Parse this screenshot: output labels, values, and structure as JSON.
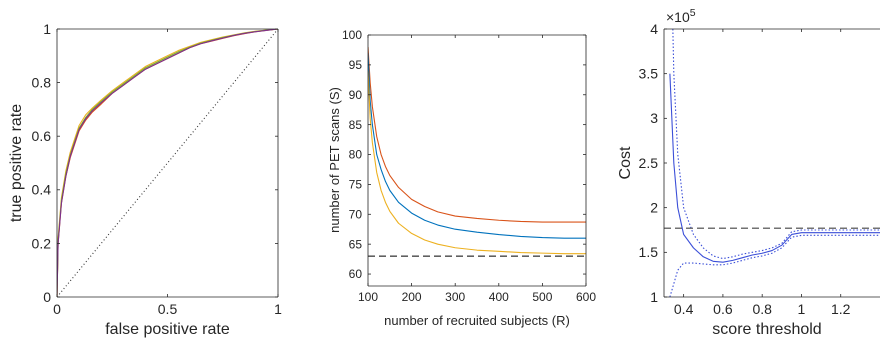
{
  "chart_data": [
    {
      "type": "line",
      "xlabel": "false positive rate",
      "ylabel": "true positive rate",
      "xlim": [
        0,
        1
      ],
      "ylim": [
        0,
        1
      ],
      "x_ticks": [
        "0",
        "0.5",
        "1"
      ],
      "x_tick_values": [
        0,
        0.5,
        1
      ],
      "y_ticks": [
        "0",
        "0.2",
        "0.4",
        "0.6",
        "0.8",
        "1"
      ],
      "y_tick_values": [
        0,
        0.2,
        0.4,
        0.6,
        0.8,
        1
      ],
      "grid": false,
      "series": [
        {
          "color": "#d95319",
          "x": [
            0,
            0.005,
            0.02,
            0.04,
            0.06,
            0.08,
            0.1,
            0.13,
            0.16,
            0.2,
            0.25,
            0.3,
            0.35,
            0.4,
            0.45,
            0.5,
            0.55,
            0.6,
            0.65,
            0.7,
            0.75,
            0.8,
            0.85,
            0.9,
            0.95,
            1
          ],
          "y": [
            0,
            0.2,
            0.35,
            0.45,
            0.52,
            0.57,
            0.62,
            0.66,
            0.69,
            0.72,
            0.76,
            0.79,
            0.82,
            0.85,
            0.87,
            0.89,
            0.91,
            0.93,
            0.945,
            0.955,
            0.965,
            0.975,
            0.983,
            0.99,
            0.995,
            1
          ]
        },
        {
          "color": "#edb120",
          "x": [
            0,
            0.005,
            0.02,
            0.04,
            0.06,
            0.08,
            0.1,
            0.13,
            0.16,
            0.2,
            0.25,
            0.3,
            0.35,
            0.4,
            0.45,
            0.5,
            0.55,
            0.6,
            0.65,
            0.7,
            0.75,
            0.8,
            0.85,
            0.9,
            0.95,
            1
          ],
          "y": [
            0,
            0.22,
            0.37,
            0.47,
            0.54,
            0.59,
            0.64,
            0.68,
            0.705,
            0.735,
            0.77,
            0.8,
            0.83,
            0.86,
            0.88,
            0.9,
            0.92,
            0.935,
            0.95,
            0.96,
            0.97,
            0.978,
            0.986,
            0.992,
            0.996,
            1
          ]
        },
        {
          "color": "#77ac30",
          "x": [
            0,
            0.005,
            0.02,
            0.04,
            0.06,
            0.08,
            0.1,
            0.13,
            0.16,
            0.2,
            0.25,
            0.3,
            0.35,
            0.4,
            0.45,
            0.5,
            0.55,
            0.6,
            0.65,
            0.7,
            0.75,
            0.8,
            0.85,
            0.9,
            0.95,
            1
          ],
          "y": [
            0,
            0.21,
            0.36,
            0.46,
            0.53,
            0.58,
            0.63,
            0.67,
            0.7,
            0.73,
            0.765,
            0.795,
            0.825,
            0.855,
            0.875,
            0.895,
            0.915,
            0.932,
            0.947,
            0.958,
            0.968,
            0.977,
            0.985,
            0.991,
            0.996,
            1
          ]
        },
        {
          "color": "#7e2f8e",
          "x": [
            0,
            0.005,
            0.02,
            0.04,
            0.06,
            0.08,
            0.1,
            0.13,
            0.16,
            0.2,
            0.25,
            0.3,
            0.35,
            0.4,
            0.45,
            0.5,
            0.55,
            0.6,
            0.65,
            0.7,
            0.75,
            0.8,
            0.85,
            0.9,
            0.95,
            1
          ],
          "y": [
            0,
            0.2,
            0.35,
            0.45,
            0.525,
            0.575,
            0.625,
            0.665,
            0.695,
            0.725,
            0.76,
            0.79,
            0.82,
            0.85,
            0.87,
            0.89,
            0.91,
            0.93,
            0.945,
            0.956,
            0.966,
            0.976,
            0.984,
            0.99,
            0.995,
            1
          ]
        },
        {
          "color": "#333333",
          "dash": "1,2.5",
          "x": [
            0,
            1
          ],
          "y": [
            0,
            1
          ]
        }
      ]
    },
    {
      "type": "line",
      "xlabel": "number of recruited subjects (R)",
      "ylabel": "number of PET scans (S)",
      "xlim": [
        100,
        600
      ],
      "ylim": [
        58,
        100
      ],
      "x_ticks": [
        "100",
        "200",
        "300",
        "400",
        "500",
        "600"
      ],
      "x_tick_values": [
        100,
        200,
        300,
        400,
        500,
        600
      ],
      "y_ticks": [
        "60",
        "65",
        "70",
        "75",
        "80",
        "85",
        "90",
        "95",
        "100"
      ],
      "y_tick_values": [
        60,
        65,
        70,
        75,
        80,
        85,
        90,
        95,
        100
      ],
      "grid": false,
      "series": [
        {
          "color": "#d95319",
          "x": [
            100,
            105,
            110,
            120,
            130,
            140,
            150,
            170,
            200,
            230,
            260,
            300,
            350,
            400,
            450,
            500,
            550,
            600
          ],
          "y": [
            98,
            92,
            88,
            83,
            80,
            78,
            76.5,
            74.5,
            72.5,
            71.3,
            70.4,
            69.7,
            69.3,
            69,
            68.8,
            68.7,
            68.7,
            68.7
          ]
        },
        {
          "color": "#0072bd",
          "x": [
            100,
            105,
            110,
            120,
            130,
            140,
            150,
            170,
            200,
            230,
            260,
            300,
            350,
            400,
            450,
            500,
            550,
            600
          ],
          "y": [
            97,
            89,
            85,
            80,
            77.5,
            75.5,
            74,
            72,
            70.2,
            69,
            68.2,
            67.5,
            67,
            66.6,
            66.3,
            66.1,
            66,
            66
          ]
        },
        {
          "color": "#edb120",
          "x": [
            100,
            105,
            110,
            120,
            130,
            140,
            150,
            170,
            200,
            230,
            260,
            300,
            350,
            400,
            450,
            500,
            550,
            600
          ],
          "y": [
            94,
            86,
            82,
            77,
            74,
            72,
            70.5,
            68.5,
            66.8,
            65.7,
            65,
            64.4,
            64,
            63.8,
            63.6,
            63.5,
            63.4,
            63.4
          ]
        },
        {
          "color": "#000000",
          "dash": "7,4",
          "x": [
            100,
            600
          ],
          "y": [
            63,
            63
          ]
        }
      ]
    },
    {
      "type": "line",
      "xlabel": "score threshold",
      "ylabel": "Cost",
      "axis_multiplier": "×10",
      "axis_multiplier_exp": "5",
      "xlim": [
        0.3,
        1.4
      ],
      "ylim": [
        1,
        4
      ],
      "x_ticks": [
        "0.4",
        "0.6",
        "0.8",
        "1",
        "1.2"
      ],
      "x_tick_values": [
        0.4,
        0.6,
        0.8,
        1,
        1.2
      ],
      "y_ticks": [
        "1",
        "1.5",
        "2",
        "2.5",
        "3",
        "3.5",
        "4"
      ],
      "y_tick_values": [
        1,
        1.5,
        2,
        2.5,
        3,
        3.5,
        4
      ],
      "grid": false,
      "series": [
        {
          "color": "#3b4fd8",
          "x": [
            0.33,
            0.34,
            0.35,
            0.37,
            0.4,
            0.45,
            0.5,
            0.55,
            0.6,
            0.65,
            0.7,
            0.75,
            0.8,
            0.85,
            0.9,
            0.95,
            1,
            1.05,
            1.1,
            1.15,
            1.2,
            1.3,
            1.4
          ],
          "y": [
            3.5,
            3.0,
            2.5,
            2.0,
            1.7,
            1.55,
            1.45,
            1.4,
            1.39,
            1.41,
            1.44,
            1.47,
            1.49,
            1.52,
            1.58,
            1.7,
            1.72,
            1.72,
            1.72,
            1.72,
            1.72,
            1.72,
            1.72
          ]
        },
        {
          "color": "#3b4fd8",
          "dash": "1.5,2",
          "x": [
            0.345,
            0.35,
            0.37,
            0.4,
            0.45,
            0.5,
            0.55,
            0.6,
            0.65,
            0.7,
            0.75,
            0.8,
            0.85,
            0.9,
            0.95,
            1,
            1.1,
            1.2,
            1.3,
            1.4
          ],
          "y": [
            4.0,
            3.5,
            2.6,
            2.0,
            1.7,
            1.55,
            1.46,
            1.43,
            1.45,
            1.48,
            1.5,
            1.52,
            1.55,
            1.6,
            1.73,
            1.75,
            1.75,
            1.75,
            1.75,
            1.75
          ]
        },
        {
          "color": "#3b4fd8",
          "dash": "1.5,2",
          "x": [
            0.33,
            0.35,
            0.37,
            0.4,
            0.45,
            0.5,
            0.55,
            0.6,
            0.65,
            0.7,
            0.75,
            0.8,
            0.85,
            0.9,
            0.95,
            1,
            1.1,
            1.2,
            1.3,
            1.4
          ],
          "y": [
            1.0,
            1.15,
            1.3,
            1.38,
            1.38,
            1.37,
            1.36,
            1.36,
            1.38,
            1.41,
            1.44,
            1.46,
            1.49,
            1.55,
            1.67,
            1.69,
            1.69,
            1.69,
            1.69,
            1.69
          ]
        },
        {
          "color": "#444444",
          "dash": "7,4",
          "x": [
            0.3,
            1.4
          ],
          "y": [
            1.77,
            1.77
          ]
        }
      ]
    }
  ]
}
